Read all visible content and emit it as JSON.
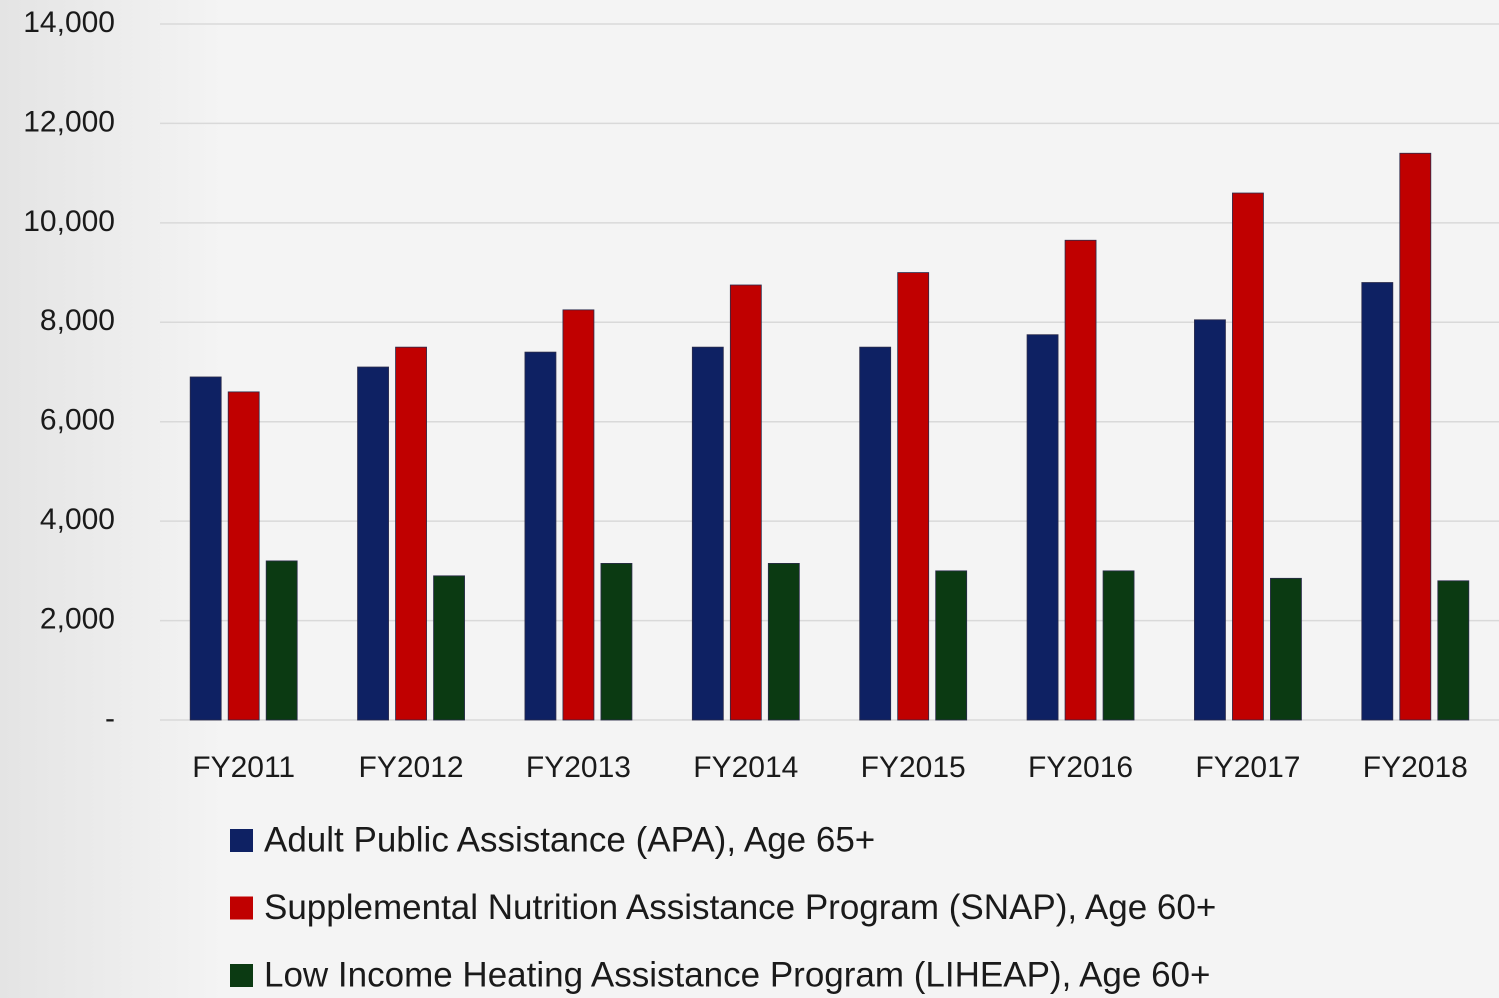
{
  "chart_data": {
    "type": "bar",
    "categories": [
      "FY2011",
      "FY2012",
      "FY2013",
      "FY2014",
      "FY2015",
      "FY2016",
      "FY2017",
      "FY2018"
    ],
    "series": [
      {
        "name": "Adult Public Assistance (APA), Age 65+",
        "color": "#0e2163",
        "values": [
          6900,
          7100,
          7400,
          7500,
          7500,
          7750,
          8050,
          8800
        ]
      },
      {
        "name": "Supplemental Nutrition Assistance Program (SNAP), Age 60+",
        "color": "#c00000",
        "values": [
          6600,
          7500,
          8250,
          8750,
          9000,
          9650,
          10600,
          11400
        ]
      },
      {
        "name": "Low Income Heating Assistance Program (LIHEAP), Age 60+",
        "color": "#0b3a12",
        "values": [
          3200,
          2900,
          3150,
          3150,
          3000,
          3000,
          2850,
          2800
        ]
      }
    ],
    "ylim": [
      0,
      14000
    ],
    "yticks": [
      {
        "value": 0,
        "label": "-"
      },
      {
        "value": 2000,
        "label": "2,000"
      },
      {
        "value": 4000,
        "label": "4,000"
      },
      {
        "value": 6000,
        "label": "6,000"
      },
      {
        "value": 8000,
        "label": "8,000"
      },
      {
        "value": 10000,
        "label": "10,000"
      },
      {
        "value": 12000,
        "label": "12,000"
      },
      {
        "value": 14000,
        "label": "14,000"
      }
    ],
    "grid": true,
    "legend": "bottom"
  }
}
